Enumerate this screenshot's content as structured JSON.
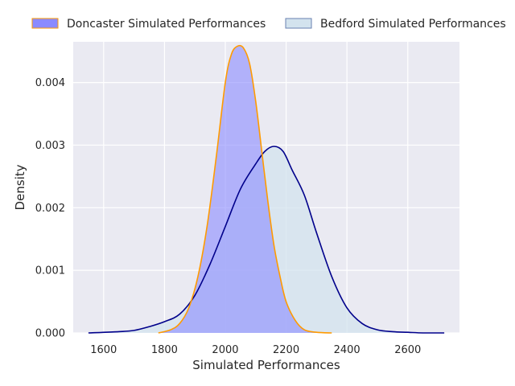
{
  "chart_data": {
    "type": "area",
    "title": "",
    "xlabel": "Simulated Performances",
    "ylabel": "Density",
    "xlim": [
      1500,
      2770
    ],
    "ylim": [
      0,
      0.00465
    ],
    "xticks": [
      1600,
      1800,
      2000,
      2200,
      2400,
      2600
    ],
    "yticks": [
      0.0,
      0.001,
      0.002,
      0.003,
      0.004
    ],
    "ytick_labels": [
      "0.000",
      "0.001",
      "0.002",
      "0.003",
      "0.004"
    ],
    "grid": true,
    "legend_position": "top",
    "series": [
      {
        "name": "Doncaster Simulated Performances",
        "fill_color": "#8a8aff",
        "line_color": "#ff9a00",
        "x": [
          1780,
          1820,
          1850,
          1880,
          1910,
          1940,
          1970,
          2000,
          2020,
          2040,
          2060,
          2080,
          2100,
          2120,
          2140,
          2160,
          2180,
          2200,
          2230,
          2260,
          2300,
          2350
        ],
        "y": [
          0.0,
          5e-05,
          0.00015,
          0.0004,
          0.0009,
          0.0017,
          0.0028,
          0.004,
          0.00445,
          0.00458,
          0.00455,
          0.0043,
          0.0037,
          0.0029,
          0.0021,
          0.0014,
          0.0009,
          0.0005,
          0.0002,
          5e-05,
          1e-05,
          0.0
        ]
      },
      {
        "name": "Bedford Simulated Performances",
        "fill_color": "#d3e3ee",
        "line_color": "#00008b",
        "x": [
          1550,
          1650,
          1700,
          1750,
          1800,
          1850,
          1900,
          1950,
          2000,
          2050,
          2100,
          2130,
          2160,
          2190,
          2220,
          2260,
          2300,
          2350,
          2400,
          2450,
          2500,
          2550,
          2600,
          2650,
          2720
        ],
        "y": [
          0.0,
          2e-05,
          4e-05,
          0.0001,
          0.00018,
          0.0003,
          0.0006,
          0.0011,
          0.0017,
          0.0023,
          0.0027,
          0.0029,
          0.00298,
          0.0029,
          0.0026,
          0.0022,
          0.0016,
          0.0009,
          0.0004,
          0.00015,
          5e-05,
          2e-05,
          1e-05,
          0.0,
          0.0
        ]
      }
    ]
  }
}
